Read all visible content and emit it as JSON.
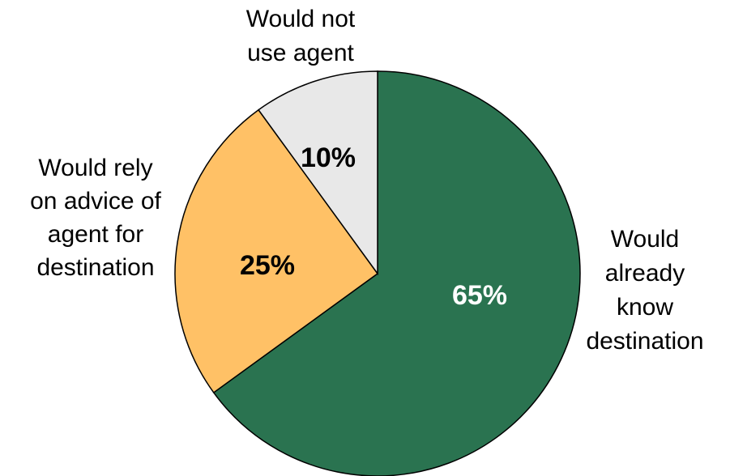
{
  "chart_data": {
    "type": "pie",
    "slices": [
      {
        "label": "Would already know destination",
        "label_lines": [
          "Would",
          "already",
          "know",
          "destination"
        ],
        "value": 65,
        "value_label": "65%",
        "color": "#2a7350",
        "value_label_color": "#ffffff"
      },
      {
        "label": "Would rely on advice of agent for destination",
        "label_lines": [
          "Would rely",
          "on advice of",
          "agent for",
          "destination"
        ],
        "value": 25,
        "value_label": "25%",
        "color": "#ffc166",
        "value_label_color": "#000000"
      },
      {
        "label": "Would not use agent",
        "label_lines": [
          "Would not",
          "use agent"
        ],
        "value": 10,
        "value_label": "10%",
        "color": "#e8e8e8",
        "value_label_color": "#000000"
      }
    ],
    "start": "12 o'clock",
    "direction": "clockwise",
    "legend": "none"
  }
}
